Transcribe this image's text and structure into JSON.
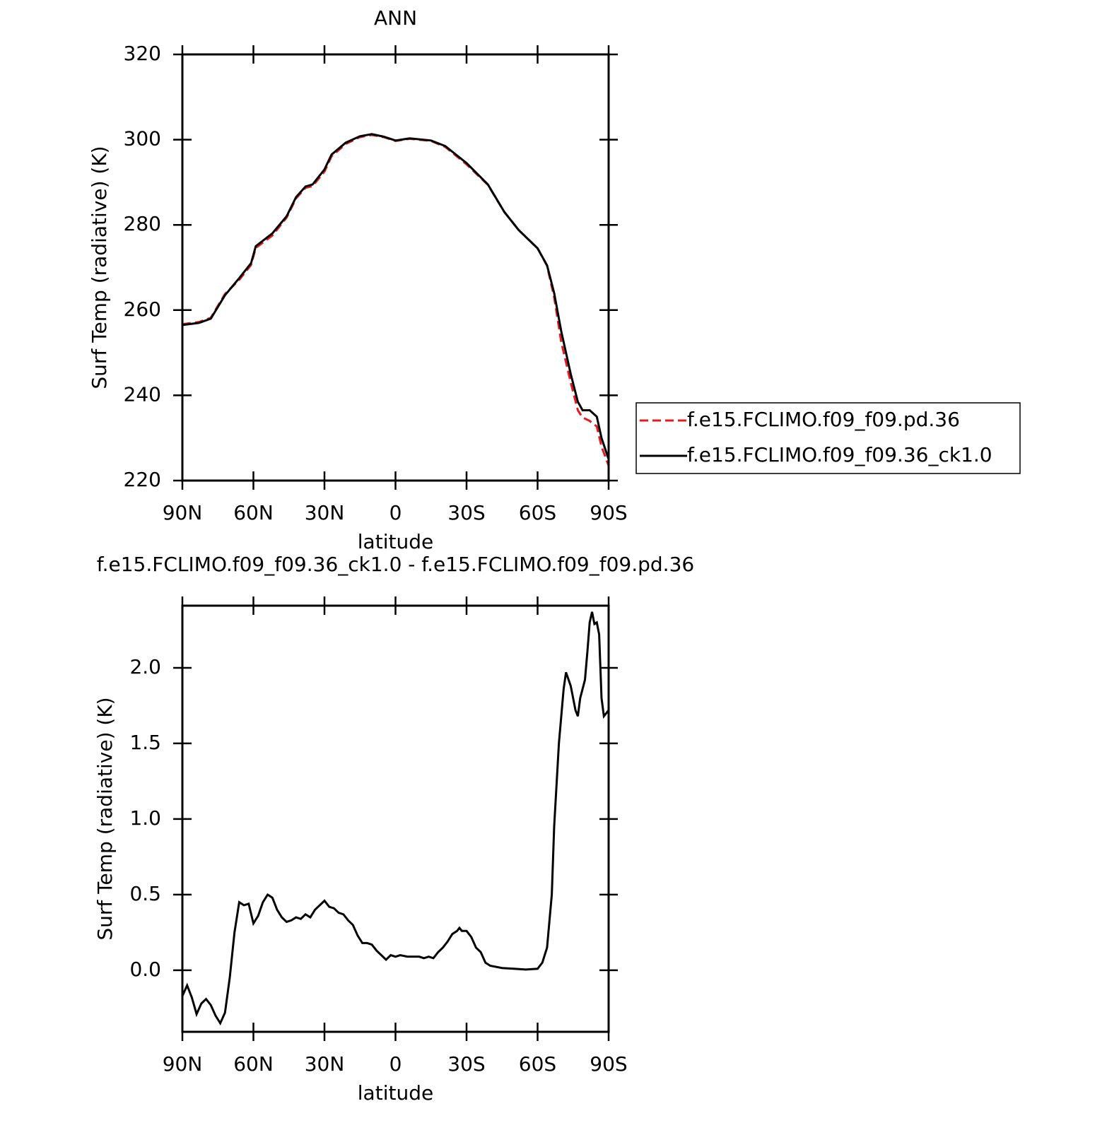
{
  "chart_data": [
    {
      "type": "line",
      "title": "ANN",
      "xlabel": "latitude",
      "ylabel": "Surf Temp (radiative) (K)",
      "x": [
        90,
        83,
        78,
        72,
        66,
        61,
        59,
        52,
        46,
        42,
        38,
        35,
        30,
        27,
        21,
        15,
        10,
        5,
        0,
        -6,
        -15,
        -21,
        -30,
        -39,
        -46,
        -52,
        -60,
        -64,
        -67,
        -70,
        -74,
        -77,
        -79,
        -82,
        -85,
        -87,
        -90
      ],
      "series": [
        {
          "name": "f.e15.FCLIMO.f09_f09.pd.36",
          "color": "#e8191c",
          "dashed": true,
          "values": [
            256.7,
            257.2,
            258.2,
            263.8,
            267.1,
            270.6,
            274.6,
            277.5,
            281.7,
            286.2,
            288.7,
            289.1,
            292.5,
            296.1,
            299,
            300.6,
            301.1,
            300.6,
            299.7,
            300.2,
            299.7,
            298.3,
            294.2,
            289.4,
            283,
            278.8,
            274.5,
            270.4,
            263,
            252.5,
            243,
            236.5,
            234.8,
            234,
            232.7,
            228,
            223.5
          ]
        },
        {
          "name": "f.e15.FCLIMO.f09_f09.36_ck1.0",
          "color": "#000000",
          "dashed": false,
          "values": [
            256.5,
            257,
            258,
            263.5,
            267.5,
            271,
            275,
            278,
            282,
            286.5,
            289,
            289.5,
            293,
            296.5,
            299.3,
            300.8,
            301.3,
            300.7,
            299.8,
            300.3,
            299.8,
            298.5,
            294.5,
            289.5,
            283,
            278.8,
            274.5,
            270.5,
            264,
            255,
            245,
            238.5,
            236.5,
            236.5,
            235,
            230,
            225
          ]
        }
      ],
      "xlim": [
        90,
        -90
      ],
      "xticks": [
        {
          "value": 90,
          "label": "90N"
        },
        {
          "value": 60,
          "label": "60N"
        },
        {
          "value": 30,
          "label": "30N"
        },
        0,
        {
          "value": -30,
          "label": "30S"
        },
        {
          "value": -60,
          "label": "60S"
        },
        {
          "value": -90,
          "label": "90S"
        }
      ],
      "ylim": [
        220,
        320
      ],
      "yticks": [
        220,
        240,
        260,
        280,
        300,
        320
      ],
      "legend": "right"
    },
    {
      "type": "line",
      "title": "f.e15.FCLIMO.f09_f09.36_ck1.0 - f.e15.FCLIMO.f09_f09.pd.36",
      "xlabel": "latitude",
      "ylabel": "Surf Temp (radiative) (K)",
      "x": [
        90,
        88,
        86,
        84,
        82,
        80,
        78,
        76,
        74,
        72,
        70,
        68,
        66,
        64,
        62,
        60,
        58,
        56,
        54,
        52,
        50,
        48,
        46,
        44,
        42,
        40,
        38,
        36,
        34,
        32,
        30,
        28,
        26,
        24,
        22,
        20,
        18,
        16,
        14,
        12,
        10,
        8,
        6,
        4,
        2,
        0,
        -2,
        -5,
        -10,
        -12,
        -14,
        -16,
        -18,
        -20,
        -22,
        -24,
        -26,
        -27,
        -28,
        -30,
        -32,
        -34,
        -36,
        -38,
        -40,
        -45,
        -50,
        -55,
        -60,
        -62,
        -64,
        -66,
        -67,
        -69,
        -71,
        -72,
        -74,
        -76,
        -77,
        -78,
        -80,
        -81,
        -82,
        -83,
        -84,
        -85,
        -86,
        -87,
        -88,
        -89,
        -90
      ],
      "series": [
        {
          "color": "#000000",
          "dashed": false,
          "values": [
            -0.17,
            -0.1,
            -0.18,
            -0.29,
            -0.22,
            -0.19,
            -0.23,
            -0.3,
            -0.35,
            -0.28,
            -0.05,
            0.25,
            0.45,
            0.43,
            0.44,
            0.31,
            0.36,
            0.45,
            0.5,
            0.48,
            0.4,
            0.35,
            0.32,
            0.33,
            0.35,
            0.34,
            0.37,
            0.35,
            0.4,
            0.43,
            0.46,
            0.42,
            0.41,
            0.38,
            0.37,
            0.33,
            0.3,
            0.23,
            0.18,
            0.18,
            0.17,
            0.13,
            0.1,
            0.07,
            0.1,
            0.09,
            0.1,
            0.09,
            0.09,
            0.08,
            0.09,
            0.08,
            0.12,
            0.15,
            0.19,
            0.24,
            0.26,
            0.28,
            0.26,
            0.26,
            0.22,
            0.15,
            0.12,
            0.05,
            0.03,
            0.015,
            0.01,
            0.005,
            0.01,
            0.05,
            0.15,
            0.5,
            0.95,
            1.5,
            1.86,
            1.97,
            1.88,
            1.72,
            1.68,
            1.8,
            1.92,
            2.1,
            2.3,
            2.37,
            2.29,
            2.3,
            2.22,
            1.8,
            1.68,
            1.7,
            1.72
          ]
        }
      ],
      "xlim": [
        90,
        -90
      ],
      "xticks": [
        {
          "value": 90,
          "label": "90N"
        },
        {
          "value": 60,
          "label": "60N"
        },
        {
          "value": 30,
          "label": "30N"
        },
        0,
        {
          "value": -30,
          "label": "30S"
        },
        {
          "value": -60,
          "label": "60S"
        },
        {
          "value": -90,
          "label": "90S"
        }
      ],
      "ylim": [
        -0.407,
        2.411
      ],
      "yticks": [
        {
          "value": 0,
          "label": "0.0"
        },
        0.5,
        {
          "value": 1,
          "label": "1.0"
        },
        1.5,
        {
          "value": 2,
          "label": "2.0"
        }
      ]
    }
  ]
}
